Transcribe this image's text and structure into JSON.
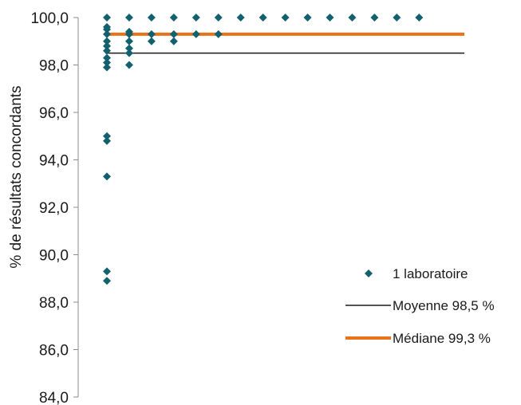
{
  "chart_data": {
    "type": "scatter",
    "ylabel": "% de résultats concordants",
    "ylim": [
      84,
      100
    ],
    "yticks": [
      "84,0",
      "86,0",
      "88,0",
      "90,0",
      "92,0",
      "94,0",
      "96,0",
      "98,0",
      "100,0"
    ],
    "ytick_values": [
      84,
      86,
      88,
      90,
      92,
      94,
      96,
      98,
      100
    ],
    "xlim": [
      0,
      16
    ],
    "x_axis_visible": false,
    "grid": false,
    "legend_position": "right",
    "series": [
      {
        "name": "1 laboratoire",
        "kind": "points",
        "marker": "diamond",
        "color": "#13616e",
        "points": [
          {
            "x": 1,
            "y": 100.0
          },
          {
            "x": 1,
            "y": 99.6
          },
          {
            "x": 1,
            "y": 99.5
          },
          {
            "x": 1,
            "y": 99.3
          },
          {
            "x": 1,
            "y": 99.0
          },
          {
            "x": 1,
            "y": 98.8
          },
          {
            "x": 1,
            "y": 98.6
          },
          {
            "x": 1,
            "y": 98.3
          },
          {
            "x": 1,
            "y": 98.1
          },
          {
            "x": 1,
            "y": 97.9
          },
          {
            "x": 1,
            "y": 95.0
          },
          {
            "x": 1,
            "y": 94.8
          },
          {
            "x": 1,
            "y": 93.3
          },
          {
            "x": 1,
            "y": 89.3
          },
          {
            "x": 1,
            "y": 88.9
          },
          {
            "x": 2,
            "y": 100.0
          },
          {
            "x": 2,
            "y": 99.4
          },
          {
            "x": 2,
            "y": 99.3
          },
          {
            "x": 2,
            "y": 99.0
          },
          {
            "x": 2,
            "y": 98.7
          },
          {
            "x": 2,
            "y": 98.5
          },
          {
            "x": 2,
            "y": 98.0
          },
          {
            "x": 3,
            "y": 100.0
          },
          {
            "x": 3,
            "y": 99.3
          },
          {
            "x": 3,
            "y": 99.0
          },
          {
            "x": 4,
            "y": 100.0
          },
          {
            "x": 4,
            "y": 99.3
          },
          {
            "x": 4,
            "y": 99.0
          },
          {
            "x": 5,
            "y": 100.0
          },
          {
            "x": 5,
            "y": 99.3
          },
          {
            "x": 6,
            "y": 100.0
          },
          {
            "x": 6,
            "y": 99.3
          },
          {
            "x": 7,
            "y": 100.0
          },
          {
            "x": 8,
            "y": 100.0
          },
          {
            "x": 9,
            "y": 100.0
          },
          {
            "x": 10,
            "y": 100.0
          },
          {
            "x": 11,
            "y": 100.0
          },
          {
            "x": 12,
            "y": 100.0
          },
          {
            "x": 13,
            "y": 100.0
          },
          {
            "x": 14,
            "y": 100.0
          },
          {
            "x": 15,
            "y": 100.0
          }
        ]
      },
      {
        "name": "Moyenne 98,5 %",
        "kind": "hline",
        "y": 98.5,
        "x_range": [
          1,
          16
        ],
        "color": "#1a1a1a"
      },
      {
        "name": "Médiane 99,3 %",
        "kind": "hline",
        "y": 99.3,
        "x_range": [
          1,
          16
        ],
        "color": "#e8731a"
      }
    ]
  }
}
